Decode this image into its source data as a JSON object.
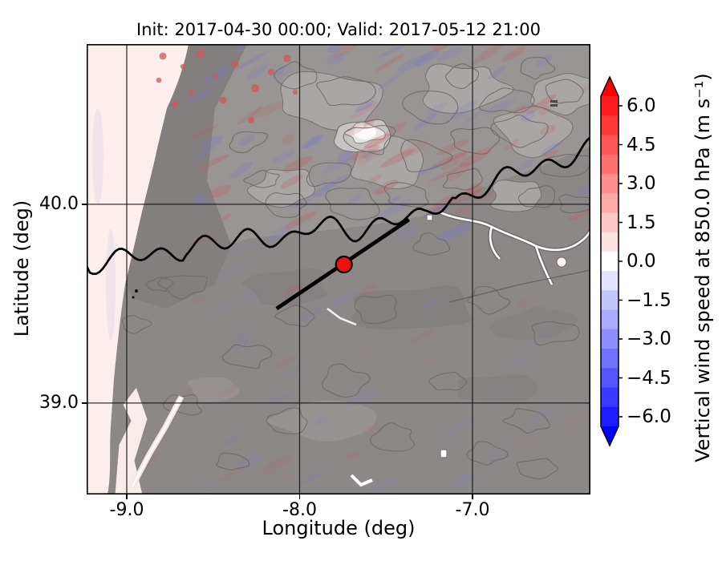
{
  "title": "Init: 2017-04-30 00:00; Valid: 2017-05-12 21:00",
  "chart_data": {
    "type": "heatmap",
    "title": "Init: 2017-04-30 00:00; Valid: 2017-05-12 21:00",
    "xlabel": "Longitude (deg)",
    "ylabel": "Latitude (deg)",
    "xlim": [
      -9.232,
      -6.318
    ],
    "ylim": [
      38.54,
      40.806
    ],
    "grid": true,
    "xticks": [
      {
        "value": -9.0,
        "label": "-9.0"
      },
      {
        "value": -8.0,
        "label": "-8.0"
      },
      {
        "value": -7.0,
        "label": "-7.0"
      }
    ],
    "yticks": [
      {
        "value": 40.0,
        "label": "40.0"
      },
      {
        "value": 39.0,
        "label": "39.0"
      }
    ],
    "field": "Vertical wind speed at 850.0 hPa",
    "colorbar": {
      "label": "Vertical wind speed at 850.0 hPa (m s⁻¹)",
      "tick_values": [
        6.0,
        4.5,
        3.0,
        1.5,
        0.0,
        -1.5,
        -3.0,
        -4.5,
        -6.0
      ],
      "tick_labels": [
        "6.0",
        "4.5",
        "3.0",
        "1.5",
        "0.0",
        "−1.5",
        "−3.0",
        "−4.5",
        "−6.0"
      ],
      "vmin": -6.375,
      "vmax": 6.375,
      "segment_step": 0.75,
      "segment_colors_top_to_bottom": [
        "#ff1c1c",
        "#ff3939",
        "#ff5555",
        "#ff7171",
        "#ff8e8e",
        "#ffaaaa",
        "#ffc6c6",
        "#ffe3e3",
        "#ffffff",
        "#e3e3ff",
        "#c6c6ff",
        "#aaaaff",
        "#8e8eff",
        "#7171ff",
        "#5555ff",
        "#3939ff",
        "#1c1cff"
      ],
      "extend_over_color": "#ff0000",
      "extend_under_color": "#0000ff"
    },
    "overlays": {
      "cross_section_line": {
        "from": {
          "lon": -8.133,
          "lat": 39.475
        },
        "to": {
          "lon": -7.368,
          "lat": 39.923
        },
        "color": "#000000"
      },
      "marker": {
        "lon": -7.744,
        "lat": 39.697,
        "fill": "#ee1111",
        "edge": "#000000"
      }
    }
  }
}
